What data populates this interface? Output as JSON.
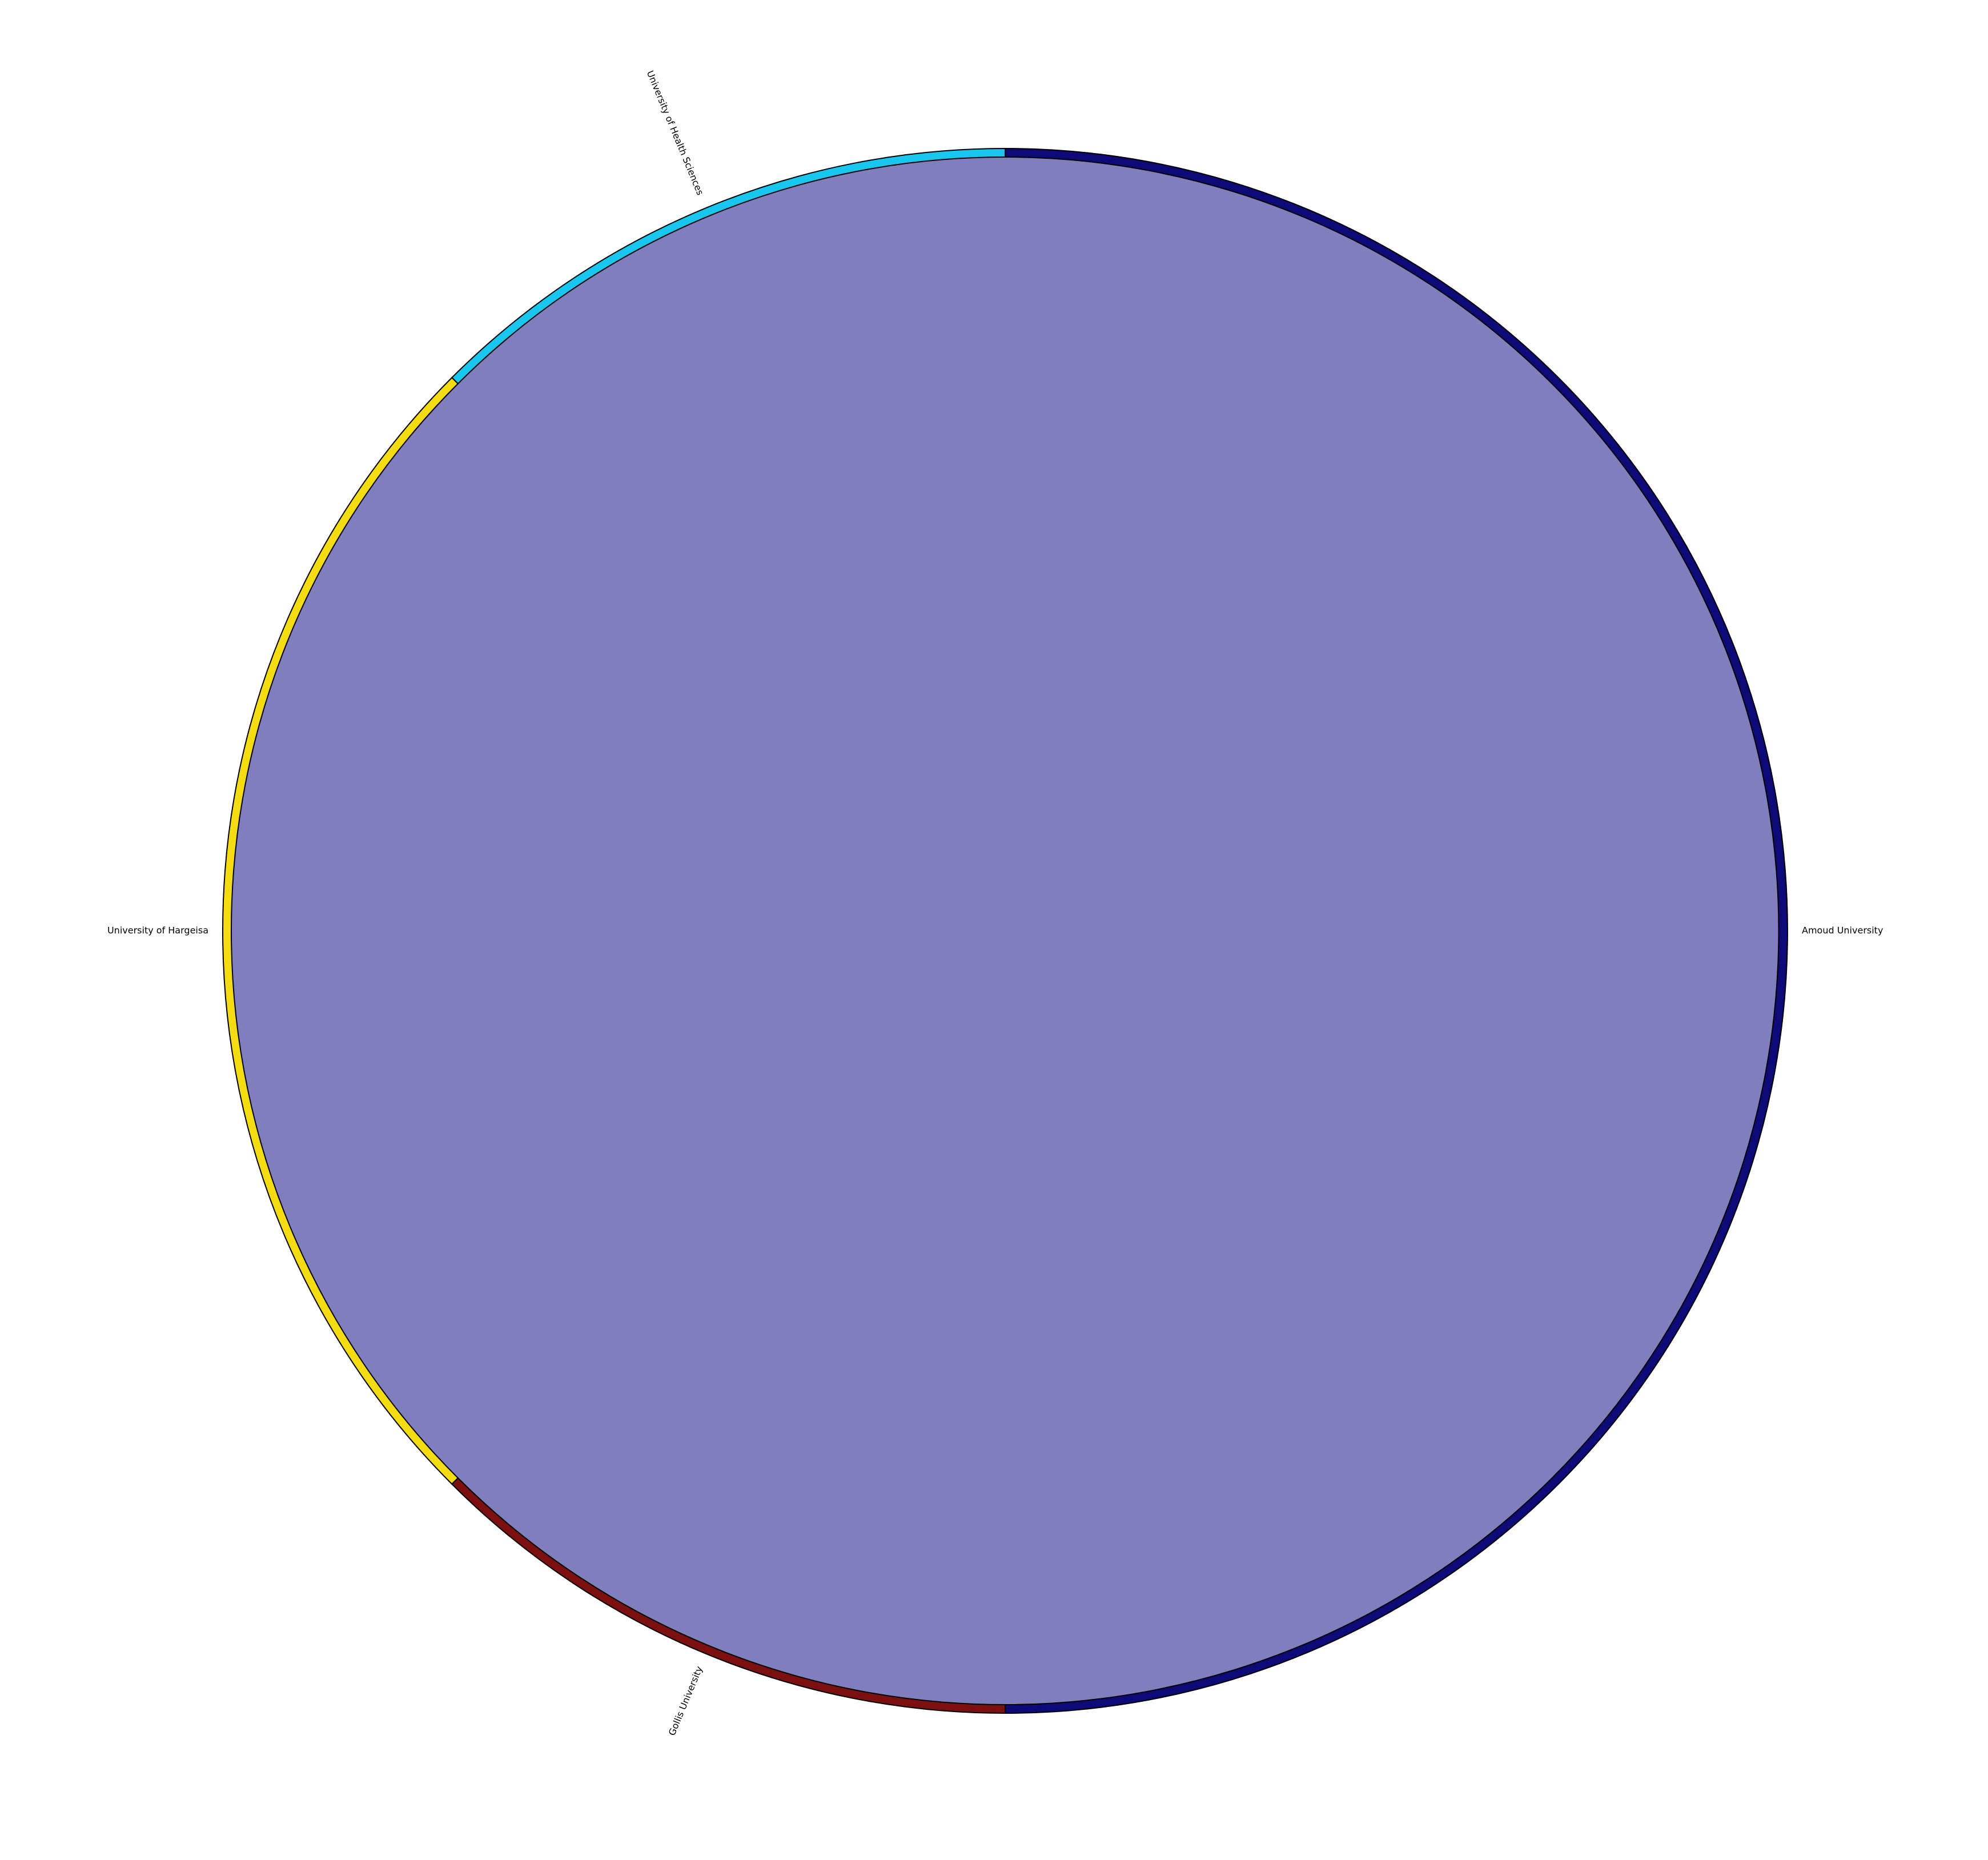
{
  "chart_data": {
    "type": "chord",
    "title": "",
    "nodes": [
      {
        "name": "Amoud University",
        "value": 50,
        "color": "#0d0a78"
      },
      {
        "name": "University of Health Sciences",
        "value": 12.5,
        "color": "#18c6ee"
      },
      {
        "name": "University of Hargeisa",
        "value": 25,
        "color": "#f3dc11"
      },
      {
        "name": "Gollis University",
        "value": 12.5,
        "color": "#7c1010"
      }
    ],
    "links": [
      {
        "source": "Amoud University",
        "target": "Amoud University",
        "color": "#807fbd"
      }
    ],
    "legend": "none"
  }
}
